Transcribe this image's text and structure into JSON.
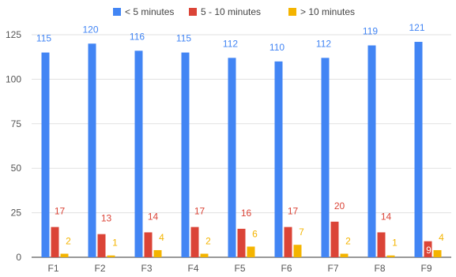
{
  "chart_data": {
    "type": "bar",
    "title": "",
    "xlabel": "",
    "ylabel": "",
    "categories": [
      "F1",
      "F2",
      "F3",
      "F4",
      "F5",
      "F6",
      "F7",
      "F8",
      "F9"
    ],
    "series": [
      {
        "name": "< 5 minutes",
        "color": "#4285f4",
        "values": [
          115,
          120,
          116,
          115,
          112,
          110,
          112,
          119,
          121
        ]
      },
      {
        "name": "5 - 10 minutes",
        "color": "#db4437",
        "values": [
          17,
          13,
          14,
          17,
          16,
          17,
          20,
          14,
          9
        ]
      },
      {
        "name": "> 10 minutes",
        "color": "#f4b400",
        "values": [
          2,
          1,
          4,
          2,
          6,
          7,
          2,
          1,
          4
        ]
      }
    ],
    "ylim": [
      0,
      125
    ],
    "yticks": [
      0,
      25,
      50,
      75,
      100,
      125
    ],
    "grid": true,
    "legend_position": "top"
  }
}
